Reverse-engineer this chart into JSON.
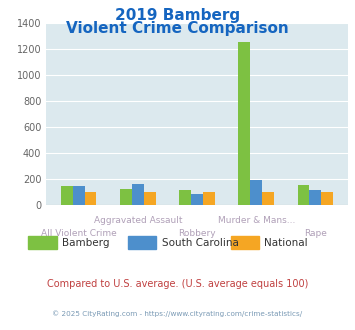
{
  "title_line1": "2019 Bamberg",
  "title_line2": "Violent Crime Comparison",
  "categories": [
    "All Violent Crime",
    "Aggravated Assault",
    "Robbery",
    "Murder & Mans...",
    "Rape"
  ],
  "series": {
    "Bamberg": [
      140,
      120,
      115,
      1255,
      148
    ],
    "South Carolina": [
      145,
      160,
      80,
      190,
      115
    ],
    "National": [
      100,
      100,
      100,
      100,
      100
    ]
  },
  "colors": {
    "Bamberg": "#7dc142",
    "South Carolina": "#4d8fcc",
    "National": "#f5a623"
  },
  "ylim": [
    0,
    1400
  ],
  "yticks": [
    0,
    200,
    400,
    600,
    800,
    1000,
    1200,
    1400
  ],
  "plot_bg": "#dce9ee",
  "title_color": "#1565c0",
  "xlabel_color": "#b0a0b8",
  "footnote1": "Compared to U.S. average. (U.S. average equals 100)",
  "footnote2": "© 2025 CityRating.com - https://www.cityrating.com/crime-statistics/",
  "footnote1_color": "#c04040",
  "footnote2_color": "#7a9ab5"
}
